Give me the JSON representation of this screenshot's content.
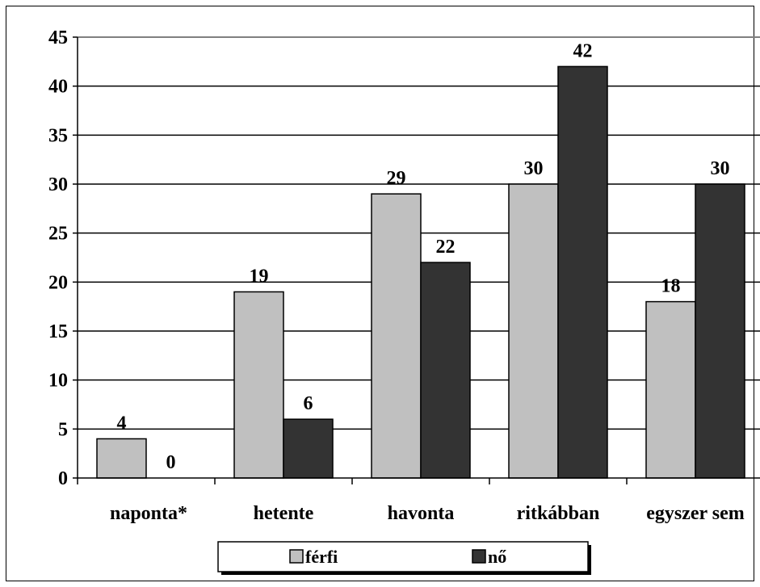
{
  "chart_data": {
    "type": "bar",
    "title": "",
    "xlabel": "",
    "ylabel": "",
    "categories": [
      "naponta*",
      "hetente",
      "havonta",
      "ritkábban",
      "egyszer sem"
    ],
    "series": [
      {
        "name": "férfi",
        "values": [
          4,
          19,
          29,
          30,
          18
        ],
        "color": "#c0c0c0"
      },
      {
        "name": "nő",
        "values": [
          0,
          6,
          22,
          42,
          30
        ],
        "color": "#333333"
      }
    ],
    "ylim": [
      0,
      45
    ],
    "yticks": [
      0,
      5,
      10,
      15,
      20,
      25,
      30,
      35,
      40,
      45
    ],
    "grid": true,
    "data_labels": true,
    "legend_position": "bottom"
  }
}
